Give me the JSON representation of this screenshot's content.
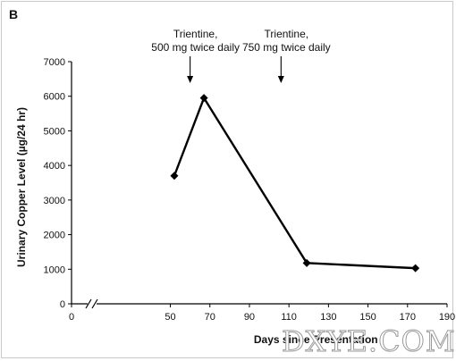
{
  "panel_label": "B",
  "watermark": "DXYE.COM",
  "chart_data": {
    "type": "line",
    "xlabel": "Days since Presentation",
    "ylabel": "Urinary Copper Level (µg/24 hr)",
    "xlim": [
      0,
      190
    ],
    "ylim": [
      0,
      7000
    ],
    "x_axis_break": true,
    "x_ticks": [
      0,
      50,
      70,
      90,
      110,
      130,
      150,
      170,
      190
    ],
    "y_ticks": [
      0,
      1000,
      2000,
      3000,
      4000,
      5000,
      6000,
      7000
    ],
    "grid": false,
    "series": [
      {
        "x": [
          52,
          67,
          119,
          174
        ],
        "y": [
          3700,
          5950,
          1180,
          1030
        ],
        "marker": "diamond",
        "color": "#000000"
      }
    ],
    "annotations": [
      {
        "text": [
          "Trientine,",
          "500 mg twice daily"
        ],
        "x": 60
      },
      {
        "text": [
          "Trientine,",
          "750 mg twice daily"
        ],
        "x": 106
      }
    ]
  }
}
